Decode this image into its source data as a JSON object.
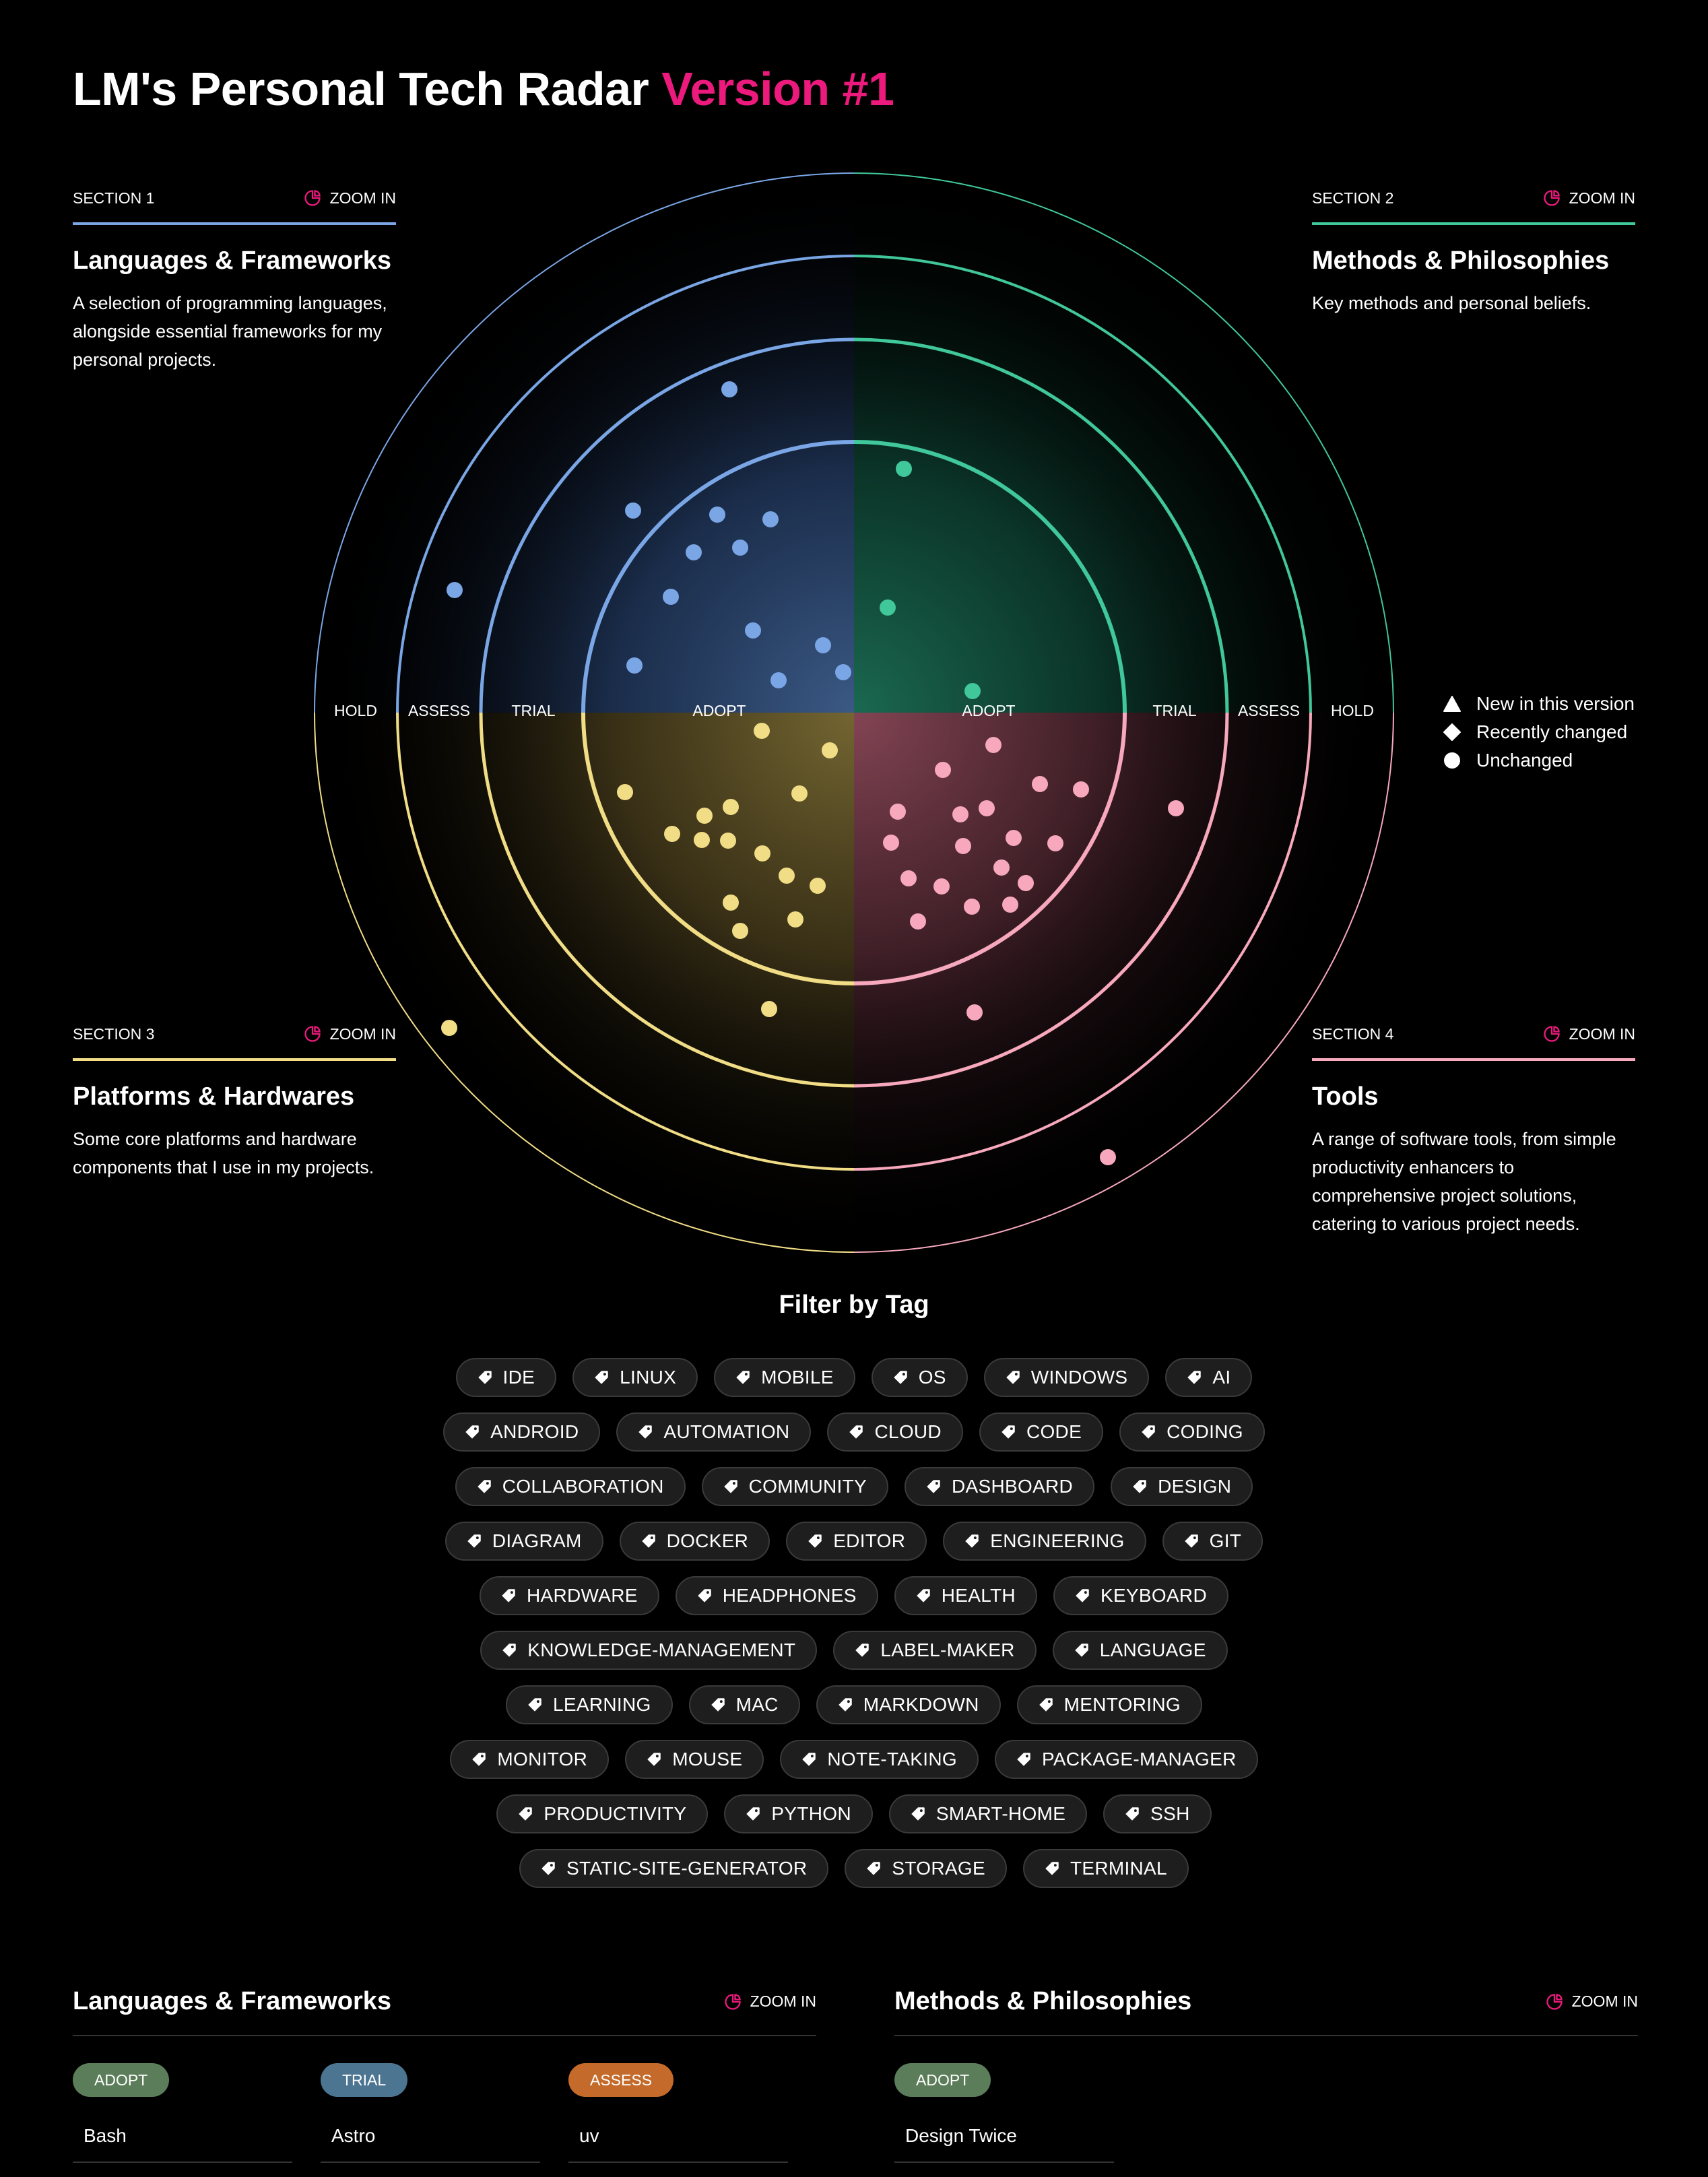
{
  "page": {
    "title_main": "LM's Personal Tech Radar",
    "title_version": "Version #1"
  },
  "colors": {
    "accent": "#ec1a7d",
    "languages": "#7aa6e6",
    "methods": "#40c79a",
    "platforms": "#f1dd86",
    "tools": "#f7a8bc"
  },
  "sections": [
    {
      "label": "SECTION 1",
      "zoom": "ZOOM IN",
      "title": "Languages & Frameworks",
      "desc": "A selection of programming languages, alongside essential frameworks for my personal projects."
    },
    {
      "label": "SECTION 2",
      "zoom": "ZOOM IN",
      "title": "Methods & Philosophies",
      "desc": "Key methods and personal beliefs."
    },
    {
      "label": "SECTION 3",
      "zoom": "ZOOM IN",
      "title": "Platforms & Hardwares",
      "desc": "Some core platforms and hardware components that I use in my projects."
    },
    {
      "label": "SECTION 4",
      "zoom": "ZOOM IN",
      "title": "Tools",
      "desc": "A range of software tools, from simple productivity enhancers to comprehensive project solutions, catering to various project needs."
    }
  ],
  "rings": [
    "ADOPT",
    "TRIAL",
    "ASSESS",
    "HOLD"
  ],
  "legend": [
    "New in this version",
    "Recently changed",
    "Unchanged"
  ],
  "filter": {
    "title": "Filter by Tag",
    "rows": [
      [
        "IDE",
        "LINUX",
        "MOBILE",
        "OS",
        "WINDOWS",
        "AI"
      ],
      [
        "ANDROID",
        "AUTOMATION",
        "CLOUD",
        "CODE",
        "CODING"
      ],
      [
        "COLLABORATION",
        "COMMUNITY",
        "DASHBOARD",
        "DESIGN"
      ],
      [
        "DIAGRAM",
        "DOCKER",
        "EDITOR",
        "ENGINEERING",
        "GIT"
      ],
      [
        "HARDWARE",
        "HEADPHONES",
        "HEALTH",
        "KEYBOARD"
      ],
      [
        "KNOWLEDGE-MANAGEMENT",
        "LABEL-MAKER",
        "LANGUAGE"
      ],
      [
        "LEARNING",
        "MAC",
        "MARKDOWN",
        "MENTORING"
      ],
      [
        "MONITOR",
        "MOUSE",
        "NOTE-TAKING",
        "PACKAGE-MANAGER"
      ],
      [
        "PRODUCTIVITY",
        "PYTHON",
        "SMART-HOME",
        "SSH"
      ],
      [
        "STATIC-SITE-GENERATOR",
        "STORAGE",
        "TERMINAL"
      ]
    ]
  },
  "lists": [
    {
      "title": "Languages & Frameworks",
      "zoom": "ZOOM IN",
      "columns": [
        {
          "ring": "ADOPT",
          "color": "#5b7d5a",
          "first_item": "Bash"
        },
        {
          "ring": "TRIAL",
          "color": "#4c7591",
          "first_item": "Astro"
        },
        {
          "ring": "ASSESS",
          "color": "#c46a2b",
          "first_item": "uv"
        }
      ]
    },
    {
      "title": "Methods & Philosophies",
      "zoom": "ZOOM IN",
      "columns": [
        {
          "ring": "ADOPT",
          "color": "#5b7d5a",
          "first_item": "Design Twice"
        }
      ]
    }
  ],
  "blips": {
    "languages": [
      [
        1083,
        578
      ],
      [
        940,
        758
      ],
      [
        1065,
        764
      ],
      [
        1144,
        771
      ],
      [
        1030,
        820
      ],
      [
        1099,
        813
      ],
      [
        675,
        876
      ],
      [
        996,
        886
      ],
      [
        1118,
        936
      ],
      [
        1222,
        958
      ],
      [
        942,
        988
      ],
      [
        1156,
        1010
      ],
      [
        1252,
        998
      ]
    ],
    "methods": [
      [
        1342,
        696
      ],
      [
        1318,
        902
      ],
      [
        1444,
        1026
      ]
    ],
    "platforms": [
      [
        1131,
        1085
      ],
      [
        1232,
        1114
      ],
      [
        928,
        1176
      ],
      [
        1187,
        1178
      ],
      [
        1046,
        1211
      ],
      [
        1085,
        1198
      ],
      [
        998,
        1238
      ],
      [
        1042,
        1247
      ],
      [
        1081,
        1248
      ],
      [
        1132,
        1267
      ],
      [
        1168,
        1300
      ],
      [
        1214,
        1315
      ],
      [
        1085,
        1340
      ],
      [
        1181,
        1365
      ],
      [
        1099,
        1382
      ],
      [
        667,
        1526
      ],
      [
        1142,
        1498
      ]
    ],
    "tools": [
      [
        1475,
        1106
      ],
      [
        1400,
        1143
      ],
      [
        1544,
        1164
      ],
      [
        1605,
        1172
      ],
      [
        1333,
        1205
      ],
      [
        1426,
        1209
      ],
      [
        1465,
        1200
      ],
      [
        1746,
        1200
      ],
      [
        1323,
        1251
      ],
      [
        1430,
        1256
      ],
      [
        1505,
        1244
      ],
      [
        1567,
        1252
      ],
      [
        1487,
        1288
      ],
      [
        1349,
        1304
      ],
      [
        1398,
        1316
      ],
      [
        1523,
        1311
      ],
      [
        1443,
        1346
      ],
      [
        1500,
        1343
      ],
      [
        1363,
        1368
      ],
      [
        1447,
        1503
      ],
      [
        1645,
        1718
      ]
    ]
  }
}
